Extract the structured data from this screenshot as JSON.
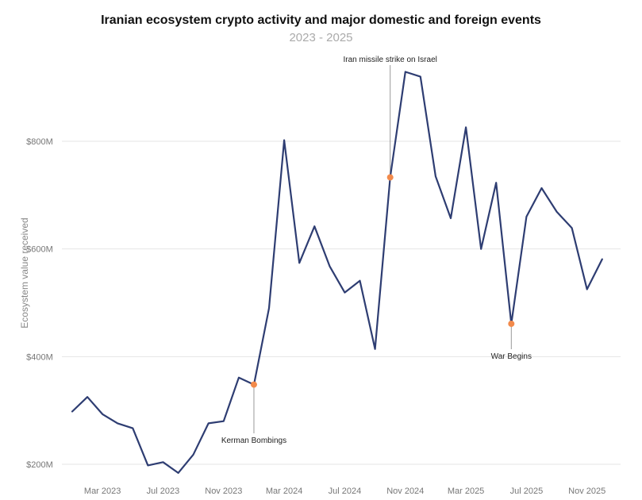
{
  "chart_data": {
    "type": "line",
    "title": "Iranian ecosystem crypto activity and major domestic and foreign events",
    "subtitle": "2023 - 2025",
    "xlabel": "",
    "ylabel": "Ecosystem value received",
    "x_ticks": [
      "Mar 2023",
      "Jul 2023",
      "Nov 2023",
      "Mar 2024",
      "Jul 2024",
      "Nov 2024",
      "Mar 2025",
      "Jul 2025",
      "Nov 2025"
    ],
    "y_ticks": [
      {
        "value": 200,
        "label": "$200M"
      },
      {
        "value": 400,
        "label": "$400M"
      },
      {
        "value": 600,
        "label": "$600M"
      },
      {
        "value": 800,
        "label": "$800M"
      }
    ],
    "ylim": [
      180,
      960
    ],
    "grid": true,
    "line_color": "#2e3d72",
    "marker_color": "#f28a4b",
    "series": [
      {
        "name": "",
        "x": [
          "2023-01",
          "2023-02",
          "2023-03",
          "2023-04",
          "2023-05",
          "2023-06",
          "2023-07",
          "2023-08",
          "2023-09",
          "2023-10",
          "2023-11",
          "2023-12",
          "2024-01",
          "2024-02",
          "2024-03",
          "2024-04",
          "2024-05",
          "2024-06",
          "2024-07",
          "2024-08",
          "2024-09",
          "2024-10",
          "2024-11",
          "2024-12",
          "2025-01",
          "2025-02",
          "2025-03",
          "2025-04",
          "2025-05",
          "2025-06",
          "2025-07",
          "2025-08",
          "2025-09",
          "2025-10",
          "2025-11",
          "2025-12"
        ],
        "values": [
          298,
          325,
          293,
          276,
          267,
          198,
          204,
          184,
          218,
          276,
          280,
          361,
          348,
          490,
          802,
          574,
          642,
          568,
          519,
          541,
          414,
          733,
          929,
          920,
          735,
          657,
          826,
          600,
          723,
          461,
          660,
          713,
          669,
          639,
          525,
          581
        ]
      }
    ],
    "annotations": [
      {
        "label": "Kerman Bombings",
        "x": "2024-01",
        "value": 348,
        "label_position": "below"
      },
      {
        "label": "Iran missile strike on Israel",
        "x": "2024-10",
        "value": 733,
        "label_position": "above"
      },
      {
        "label": "War Begins",
        "x": "2025-06",
        "value": 461,
        "label_position": "below"
      }
    ]
  }
}
